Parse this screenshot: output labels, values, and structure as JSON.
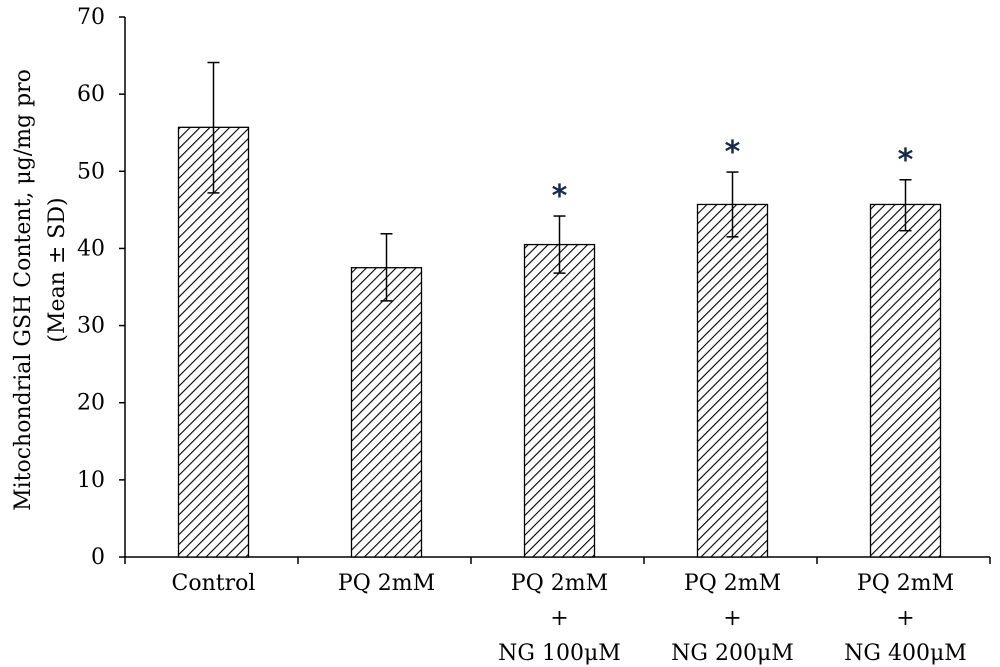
{
  "chart_data": {
    "type": "bar",
    "ylabel_line1": "Mitochondrial GSH Content, μg/mg pro",
    "ylabel_line2": "(Mean ± SD)",
    "ylim": [
      0,
      70
    ],
    "yticks": [
      0,
      10,
      20,
      30,
      40,
      50,
      60,
      70
    ],
    "grid": false,
    "fill_pattern": "diagonal-hatch",
    "categories": [
      [
        "Control"
      ],
      [
        "PQ 2mM"
      ],
      [
        "PQ 2mM",
        "+",
        "NG 100μM"
      ],
      [
        "PQ 2mM",
        "+",
        "NG 200μM"
      ],
      [
        "PQ 2mM",
        "+",
        "NG 400μM"
      ]
    ],
    "values": [
      55.7,
      37.5,
      40.5,
      45.7,
      45.7
    ],
    "error_low": [
      47.2,
      33.2,
      36.8,
      41.5,
      42.3
    ],
    "error_high": [
      64.1,
      41.9,
      44.2,
      49.9,
      48.9
    ],
    "significance": [
      "",
      "",
      "*",
      "*",
      "*"
    ]
  }
}
